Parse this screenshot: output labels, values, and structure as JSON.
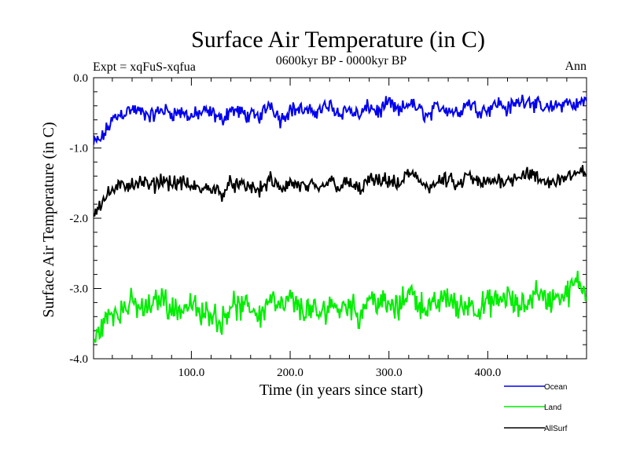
{
  "chart_data": {
    "type": "line",
    "title": "Surface Air Temperature (in C)",
    "subtitle": "0600kyr BP - 0000kyr BP",
    "experiment_label": "Expt = xqFuS-xqfua",
    "season_label": "Ann",
    "xlabel": "Time (in years since start)",
    "ylabel": "Surface Air Temperature (in C)",
    "xlim": [
      1,
      500
    ],
    "ylim": [
      -4.0,
      0.0
    ],
    "xticks": [
      100,
      200,
      300,
      400
    ],
    "xtick_labels": [
      "100.0",
      "200.0",
      "300.0",
      "400.0"
    ],
    "yticks": [
      0,
      -1,
      -2,
      -3,
      -4
    ],
    "ytick_labels": [
      "0.0",
      "-1.0",
      "-2.0",
      "-3.0",
      "-4.0"
    ],
    "legend_position": "bottom-right",
    "series": [
      {
        "name": "Ocean",
        "color": "#0000ee",
        "x": [
          1,
          10,
          20,
          30,
          40,
          50,
          60,
          70,
          80,
          90,
          100,
          110,
          120,
          130,
          140,
          150,
          160,
          170,
          180,
          190,
          200,
          210,
          220,
          230,
          240,
          250,
          260,
          270,
          280,
          290,
          300,
          310,
          320,
          330,
          340,
          350,
          360,
          370,
          380,
          390,
          400,
          410,
          420,
          430,
          440,
          450,
          460,
          470,
          480,
          490,
          500
        ],
        "values": [
          -0.95,
          -0.85,
          -0.6,
          -0.5,
          -0.45,
          -0.5,
          -0.55,
          -0.45,
          -0.5,
          -0.5,
          -0.55,
          -0.5,
          -0.5,
          -0.6,
          -0.45,
          -0.5,
          -0.55,
          -0.55,
          -0.35,
          -0.6,
          -0.45,
          -0.45,
          -0.5,
          -0.45,
          -0.4,
          -0.5,
          -0.45,
          -0.55,
          -0.4,
          -0.5,
          -0.35,
          -0.5,
          -0.35,
          -0.45,
          -0.55,
          -0.4,
          -0.45,
          -0.5,
          -0.35,
          -0.45,
          -0.45,
          -0.35,
          -0.45,
          -0.35,
          -0.3,
          -0.4,
          -0.45,
          -0.4,
          -0.35,
          -0.4,
          -0.3
        ]
      },
      {
        "name": "Land",
        "color": "#00ee00",
        "x": [
          1,
          10,
          20,
          30,
          40,
          50,
          60,
          70,
          80,
          90,
          100,
          110,
          120,
          130,
          140,
          150,
          160,
          170,
          180,
          190,
          200,
          210,
          220,
          230,
          240,
          250,
          260,
          270,
          280,
          290,
          300,
          310,
          320,
          330,
          340,
          350,
          360,
          370,
          380,
          390,
          400,
          410,
          420,
          430,
          440,
          450,
          460,
          470,
          480,
          490,
          500
        ],
        "values": [
          -3.8,
          -3.5,
          -3.35,
          -3.3,
          -3.2,
          -3.3,
          -3.25,
          -3.1,
          -3.3,
          -3.3,
          -3.2,
          -3.4,
          -3.3,
          -3.5,
          -3.2,
          -3.3,
          -3.25,
          -3.4,
          -3.1,
          -3.3,
          -3.15,
          -3.3,
          -3.3,
          -3.4,
          -3.2,
          -3.3,
          -3.2,
          -3.4,
          -3.1,
          -3.2,
          -3.25,
          -3.3,
          -3.0,
          -3.2,
          -3.3,
          -3.2,
          -3.1,
          -3.3,
          -3.2,
          -3.3,
          -3.2,
          -3.2,
          -3.1,
          -3.3,
          -3.2,
          -3.0,
          -3.2,
          -3.1,
          -3.1,
          -2.9,
          -3.05
        ]
      },
      {
        "name": "AllSurf",
        "color": "#000000",
        "x": [
          1,
          10,
          20,
          30,
          40,
          50,
          60,
          70,
          80,
          90,
          100,
          110,
          120,
          130,
          140,
          150,
          160,
          170,
          180,
          190,
          200,
          210,
          220,
          230,
          240,
          250,
          260,
          270,
          280,
          290,
          300,
          310,
          320,
          330,
          340,
          350,
          360,
          370,
          380,
          390,
          400,
          410,
          420,
          430,
          440,
          450,
          460,
          470,
          480,
          490,
          500
        ],
        "values": [
          -1.9,
          -1.75,
          -1.6,
          -1.55,
          -1.5,
          -1.5,
          -1.55,
          -1.45,
          -1.5,
          -1.5,
          -1.55,
          -1.6,
          -1.55,
          -1.65,
          -1.5,
          -1.55,
          -1.55,
          -1.6,
          -1.45,
          -1.6,
          -1.5,
          -1.55,
          -1.55,
          -1.6,
          -1.45,
          -1.55,
          -1.5,
          -1.6,
          -1.45,
          -1.5,
          -1.45,
          -1.55,
          -1.35,
          -1.45,
          -1.55,
          -1.5,
          -1.45,
          -1.55,
          -1.4,
          -1.5,
          -1.5,
          -1.45,
          -1.45,
          -1.4,
          -1.35,
          -1.45,
          -1.5,
          -1.45,
          -1.4,
          -1.4,
          -1.3
        ]
      }
    ]
  }
}
